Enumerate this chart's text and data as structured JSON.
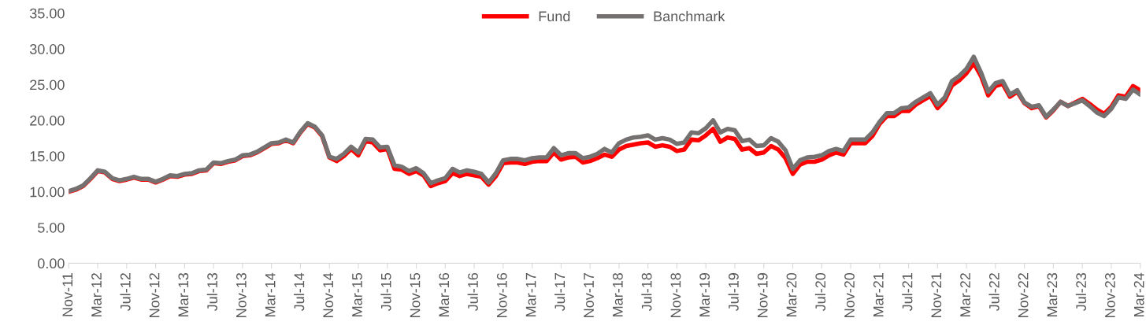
{
  "chart_data": {
    "type": "line",
    "categories": [
      "Nov-11",
      null,
      null,
      null,
      "Mar-12",
      null,
      null,
      null,
      "Jul-12",
      null,
      null,
      null,
      "Nov-12",
      null,
      null,
      null,
      "Mar-13",
      null,
      null,
      null,
      "Jul-13",
      null,
      null,
      null,
      "Nov-13",
      null,
      null,
      null,
      "Mar-14",
      null,
      null,
      null,
      "Jul-14",
      null,
      null,
      null,
      "Nov-14",
      null,
      null,
      null,
      "Mar-15",
      null,
      null,
      null,
      "Jul-15",
      null,
      null,
      null,
      "Nov-15",
      null,
      null,
      null,
      "Mar-16",
      null,
      null,
      null,
      "Jul-16",
      null,
      null,
      null,
      "Nov-16",
      null,
      null,
      null,
      "Mar-17",
      null,
      null,
      null,
      "Jul-17",
      null,
      null,
      null,
      "Nov-17",
      null,
      null,
      null,
      "Mar-18",
      null,
      null,
      null,
      "Jul-18",
      null,
      null,
      null,
      "Nov-18",
      null,
      null,
      null,
      "Mar-19",
      null,
      null,
      null,
      "Jul-19",
      null,
      null,
      null,
      "Nov-19",
      null,
      null,
      null,
      "Mar-20",
      null,
      null,
      null,
      "Jul-20",
      null,
      null,
      null,
      "Nov-20",
      null,
      null,
      null,
      "Mar-21",
      null,
      null,
      null,
      "Jul-21",
      null,
      null,
      null,
      "Nov-21",
      null,
      null,
      null,
      "Mar-22",
      null,
      null,
      null,
      "Jul-22",
      null,
      null,
      null,
      "Nov-22",
      null,
      null,
      null,
      "Mar-23",
      null,
      null,
      null,
      "Jul-23",
      null,
      null,
      null,
      "Nov-23",
      null,
      null,
      null,
      "Mar-24"
    ],
    "series": [
      {
        "name": "Fund",
        "color": "#ff0000",
        "values": [
          10.0,
          10.3,
          10.8,
          11.8,
          12.9,
          12.7,
          11.8,
          11.5,
          11.7,
          12.0,
          11.7,
          11.7,
          11.3,
          11.7,
          12.2,
          12.1,
          12.4,
          12.5,
          12.9,
          13.0,
          14.0,
          13.9,
          14.2,
          14.4,
          15.0,
          15.1,
          15.5,
          16.1,
          16.7,
          16.8,
          17.2,
          16.8,
          18.3,
          19.5,
          19.0,
          17.8,
          14.8,
          14.3,
          15.0,
          16.0,
          15.1,
          17.1,
          16.9,
          15.8,
          16.0,
          13.2,
          13.1,
          12.5,
          12.9,
          12.3,
          10.8,
          11.2,
          11.5,
          12.6,
          12.2,
          12.5,
          12.3,
          12.1,
          11.0,
          12.2,
          14.0,
          14.1,
          14.1,
          13.9,
          14.2,
          14.3,
          14.3,
          15.5,
          14.5,
          14.8,
          14.9,
          14.1,
          14.3,
          14.7,
          15.2,
          14.9,
          15.9,
          16.4,
          16.6,
          16.8,
          16.9,
          16.3,
          16.5,
          16.3,
          15.7,
          15.9,
          17.3,
          17.2,
          17.9,
          18.8,
          17.0,
          17.6,
          17.4,
          15.9,
          16.1,
          15.3,
          15.5,
          16.4,
          15.9,
          14.7,
          12.5,
          13.8,
          14.2,
          14.2,
          14.5,
          15.1,
          15.5,
          15.2,
          16.8,
          16.8,
          16.8,
          17.8,
          19.5,
          20.6,
          20.6,
          21.3,
          21.3,
          22.2,
          22.8,
          23.4,
          21.7,
          22.8,
          24.9,
          25.6,
          26.6,
          28.0,
          26.2,
          23.5,
          24.8,
          25.1,
          23.3,
          24.0,
          22.4,
          21.7,
          22.0,
          20.4,
          21.4,
          22.6,
          22.0,
          22.5,
          23.0,
          22.3,
          21.5,
          20.9,
          21.9,
          23.5,
          23.3,
          24.8,
          24.2
        ]
      },
      {
        "name": "Banchmark",
        "color": "#767171",
        "values": [
          10.1,
          10.4,
          10.9,
          11.9,
          13.0,
          12.8,
          11.9,
          11.6,
          11.8,
          12.1,
          11.8,
          11.8,
          11.4,
          11.8,
          12.3,
          12.2,
          12.5,
          12.6,
          13.0,
          13.1,
          14.1,
          14.0,
          14.3,
          14.5,
          15.1,
          15.2,
          15.6,
          16.2,
          16.8,
          16.9,
          17.3,
          16.9,
          18.4,
          19.6,
          19.1,
          17.9,
          14.9,
          14.6,
          15.3,
          16.3,
          15.5,
          17.4,
          17.3,
          16.2,
          16.3,
          13.7,
          13.5,
          12.9,
          13.3,
          12.6,
          11.2,
          11.6,
          11.9,
          13.2,
          12.7,
          13.0,
          12.8,
          12.5,
          11.3,
          12.6,
          14.4,
          14.6,
          14.6,
          14.4,
          14.7,
          14.8,
          14.8,
          16.1,
          15.1,
          15.4,
          15.4,
          14.7,
          14.9,
          15.3,
          16.0,
          15.5,
          16.8,
          17.3,
          17.6,
          17.7,
          17.9,
          17.3,
          17.5,
          17.3,
          16.7,
          16.9,
          18.3,
          18.2,
          18.9,
          20.0,
          18.3,
          18.8,
          18.6,
          17.1,
          17.3,
          16.4,
          16.5,
          17.5,
          17.0,
          15.8,
          13.2,
          14.4,
          14.8,
          14.9,
          15.1,
          15.7,
          16.0,
          15.7,
          17.3,
          17.3,
          17.3,
          18.3,
          19.8,
          21.0,
          21.0,
          21.7,
          21.8,
          22.6,
          23.2,
          23.8,
          22.2,
          23.2,
          25.5,
          26.2,
          27.2,
          28.9,
          26.7,
          24.0,
          25.2,
          25.5,
          23.6,
          24.2,
          22.5,
          21.9,
          22.1,
          20.5,
          21.5,
          22.6,
          22.0,
          22.4,
          22.8,
          22.0,
          21.1,
          20.6,
          21.6,
          23.2,
          23.0,
          24.3,
          23.6
        ]
      }
    ],
    "ylim": [
      0,
      35
    ],
    "yticks": [
      {
        "value": 0,
        "label": "0.00"
      },
      {
        "value": 5,
        "label": "5.00"
      },
      {
        "value": 10,
        "label": "10.00"
      },
      {
        "value": 15,
        "label": "15.00"
      },
      {
        "value": 20,
        "label": "20.00"
      },
      {
        "value": 25,
        "label": "25.00"
      },
      {
        "value": 30,
        "label": "30.00"
      },
      {
        "value": 35,
        "label": "35.00"
      }
    ],
    "grid": false,
    "legend": "top",
    "marker": "none",
    "line_style": "solid"
  }
}
